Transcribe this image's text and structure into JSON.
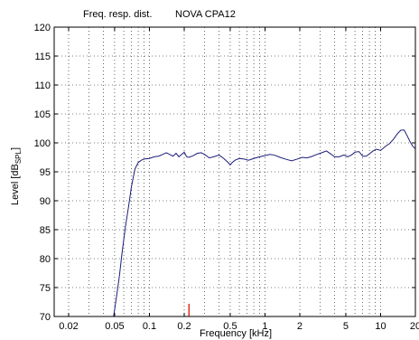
{
  "chart_data": {
    "type": "line",
    "title_left": "Freq. resp. dist.",
    "title_right": "NOVA CPA12",
    "xlabel": "Frequency [kHz]",
    "ylabel_main": "Level [dB",
    "ylabel_sub": "SPL",
    "ylabel_end": "]",
    "x_scale": "log",
    "xlim": [
      0.015,
      20
    ],
    "ylim": [
      70,
      120
    ],
    "grid": "dotted, major and minor",
    "x_ticks": [
      0.02,
      0.05,
      0.1,
      0.2,
      0.5,
      1,
      2,
      5,
      10,
      20
    ],
    "x_tick_labels": [
      "0.02",
      "0.05",
      "0.1",
      "0.2",
      "0.5",
      "1",
      "2",
      "5",
      "10",
      "20"
    ],
    "y_ticks": [
      70,
      75,
      80,
      85,
      90,
      95,
      100,
      105,
      110,
      115,
      120
    ],
    "y_tick_labels": [
      "70",
      "75",
      "80",
      "85",
      "90",
      "95",
      "100",
      "105",
      "110",
      "115",
      "120"
    ],
    "series": [
      {
        "color": "#1c1c7a",
        "x": [
          0.049,
          0.052,
          0.055,
          0.058,
          0.062,
          0.066,
          0.07,
          0.075,
          0.08,
          0.085,
          0.09,
          0.1,
          0.11,
          0.12,
          0.13,
          0.14,
          0.15,
          0.16,
          0.17,
          0.18,
          0.19,
          0.2,
          0.21,
          0.22,
          0.24,
          0.26,
          0.28,
          0.3,
          0.33,
          0.36,
          0.4,
          0.44,
          0.48,
          0.5,
          0.52,
          0.55,
          0.6,
          0.66,
          0.72,
          0.8,
          0.9,
          1.0,
          1.1,
          1.2,
          1.35,
          1.5,
          1.7,
          1.9,
          2.1,
          2.3,
          2.5,
          2.8,
          3.1,
          3.4,
          3.7,
          4.0,
          4.4,
          4.8,
          5.2,
          5.6,
          6.0,
          6.5,
          7.0,
          7.5,
          8.0,
          8.6,
          9.2,
          10.0,
          11.0,
          12.0,
          13.0,
          14.0,
          15.0,
          16.0,
          17.0,
          18.0,
          19.0,
          20.0
        ],
        "y": [
          70,
          73.5,
          77,
          81,
          85.5,
          89,
          92.5,
          95.5,
          96.6,
          97.0,
          97.2,
          97.3,
          97.6,
          97.7,
          98.0,
          98.3,
          98.0,
          97.7,
          98.2,
          97.6,
          98.0,
          98.4,
          97.6,
          97.5,
          97.8,
          98.2,
          98.3,
          98.0,
          97.4,
          97.6,
          97.9,
          97.3,
          96.6,
          96.2,
          96.6,
          97.0,
          97.3,
          97.2,
          97.0,
          97.3,
          97.6,
          97.8,
          98.0,
          97.9,
          97.5,
          97.2,
          96.9,
          97.2,
          97.5,
          97.4,
          97.6,
          98.0,
          98.3,
          98.6,
          98.1,
          97.6,
          97.6,
          97.9,
          97.6,
          97.9,
          98.4,
          98.5,
          97.7,
          97.7,
          98.1,
          98.6,
          98.9,
          98.7,
          99.4,
          99.9,
          100.7,
          101.6,
          102.2,
          102.2,
          101.2,
          100.2,
          99.4,
          99.0
        ]
      }
    ],
    "marker": {
      "x": 0.22,
      "y_from": 70,
      "y_to": 72.2,
      "color": "#e03020"
    }
  }
}
